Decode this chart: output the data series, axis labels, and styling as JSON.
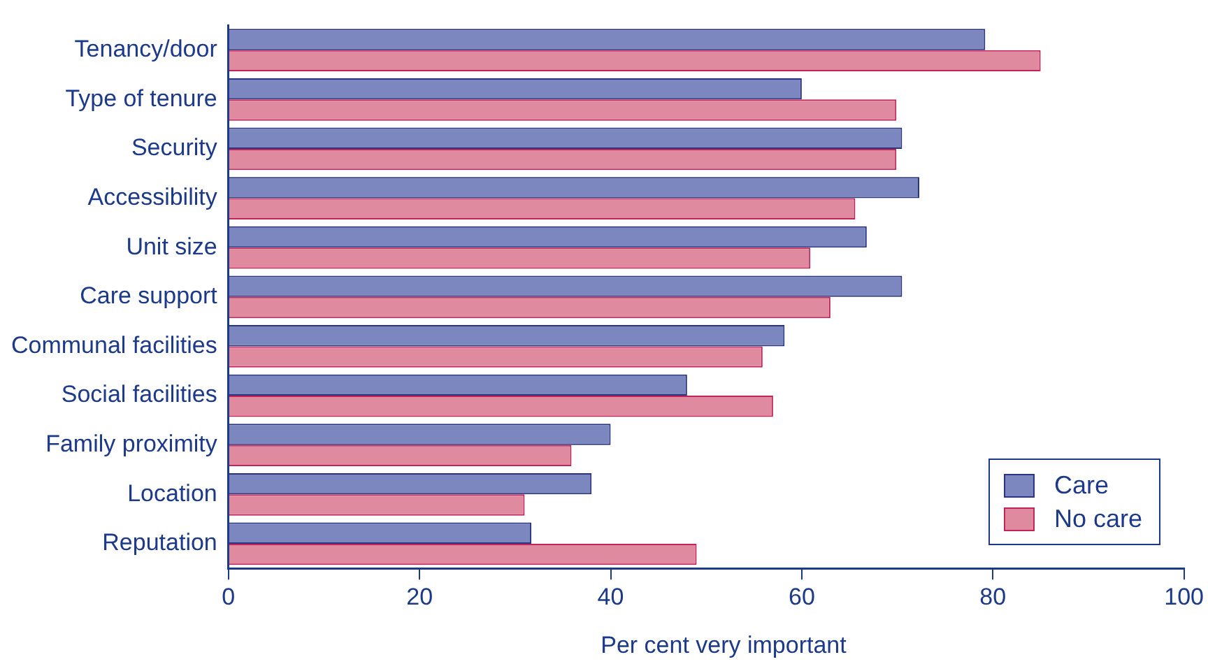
{
  "chart_data": {
    "type": "bar",
    "orientation": "horizontal",
    "xlabel": "Per cent very important",
    "categories": [
      "Tenancy/door",
      "Type of tenure",
      "Security",
      "Accessibility",
      "Unit size",
      "Care support",
      "Communal facilities",
      "Social facilities",
      "Family proximity",
      "Location",
      "Reputation"
    ],
    "series": [
      {
        "name": "Care",
        "color": "#7b87be",
        "values": [
          79.2,
          60,
          70.5,
          72.3,
          66.8,
          70.5,
          58.2,
          48,
          40,
          38,
          31.7
        ]
      },
      {
        "name": "No care",
        "color": "#e08aa0",
        "values": [
          85,
          69.9,
          69.9,
          65.6,
          60.9,
          63,
          55.9,
          57,
          35.9,
          31,
          49
        ]
      }
    ],
    "xlim": [
      0,
      100
    ],
    "xticks": [
      0,
      20,
      40,
      60,
      80,
      100
    ],
    "grid": false,
    "legend": "bottom right"
  }
}
